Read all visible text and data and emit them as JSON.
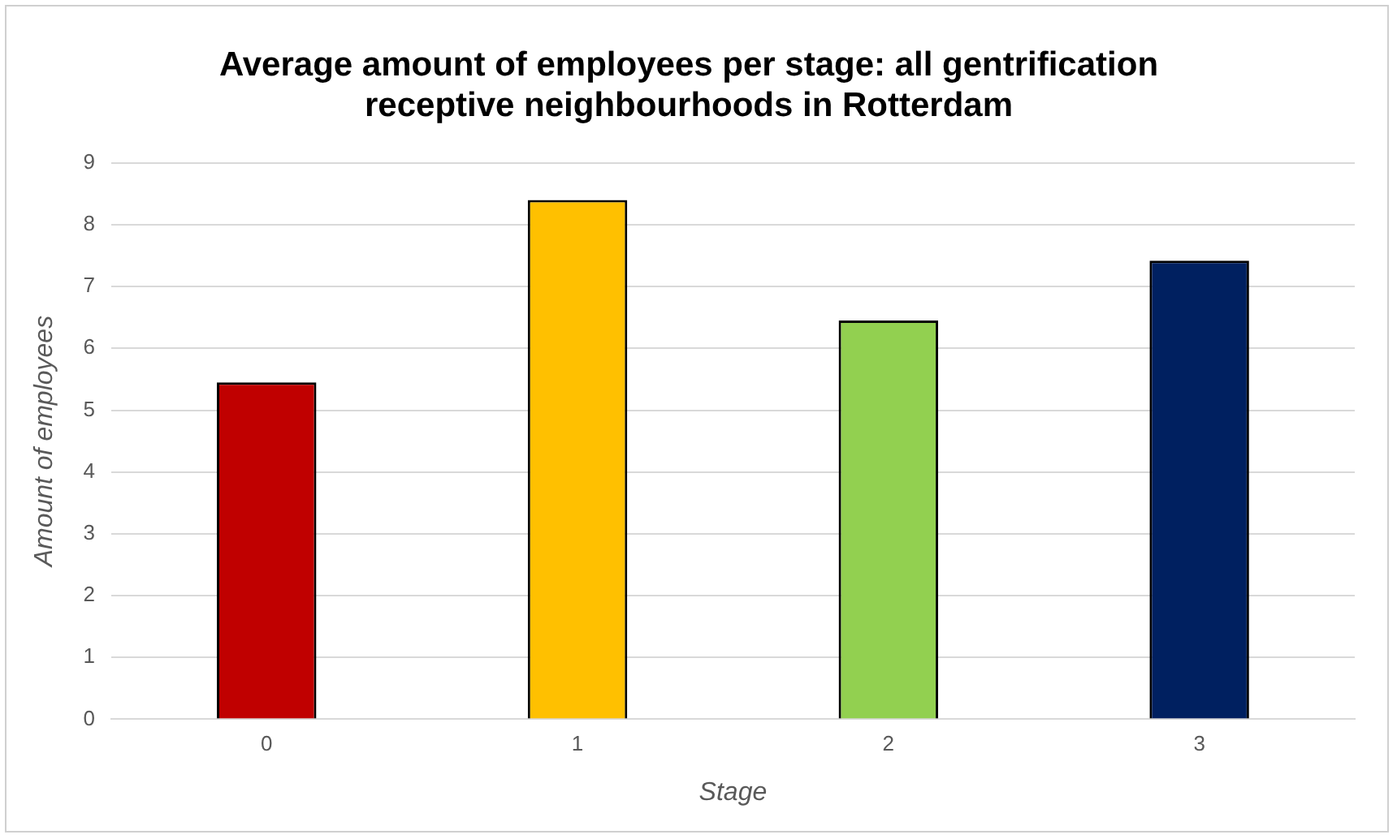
{
  "chart_data": {
    "type": "bar",
    "title": "Average amount of employees per stage: all gentrification receptive neighbourhoods in Rotterdam",
    "xlabel": "Stage",
    "ylabel": "Amount of employees",
    "categories": [
      "0",
      "1",
      "2",
      "3"
    ],
    "values": [
      5.45,
      8.4,
      6.45,
      7.42
    ],
    "colors": [
      "#c00000",
      "#ffc000",
      "#92d050",
      "#002060"
    ],
    "ylim": [
      0,
      9
    ],
    "yticks": [
      0,
      1,
      2,
      3,
      4,
      5,
      6,
      7,
      8,
      9
    ],
    "grid": "y",
    "legend": false
  }
}
